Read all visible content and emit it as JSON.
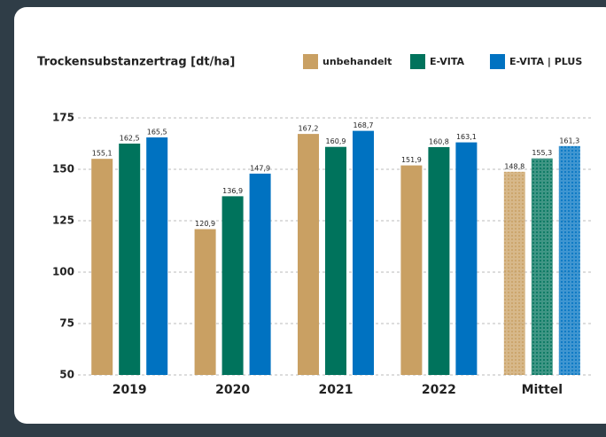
{
  "chart_data": {
    "type": "bar",
    "title": "Trockensubstanzertrag [dt/ha]",
    "categories": [
      "2019",
      "2020",
      "2021",
      "2022",
      "Mittel"
    ],
    "dotted": [
      false,
      false,
      false,
      false,
      true
    ],
    "series": [
      {
        "name": "unbehandelt",
        "color": "#c9a063",
        "values": [
          155.1,
          120.9,
          167.2,
          151.9,
          148.8
        ],
        "value_labels": [
          "155,1",
          "120,9",
          "167,2",
          "151,9",
          "148,8"
        ]
      },
      {
        "name": "E-VITA",
        "color": "#00735c",
        "values": [
          162.5,
          136.9,
          160.9,
          160.8,
          155.3
        ],
        "value_labels": [
          "162,5",
          "136,9",
          "160,9",
          "160,8",
          "155,3"
        ]
      },
      {
        "name": "E-VITA | PLUS",
        "color": "#0072c1",
        "values": [
          165.5,
          147.9,
          168.7,
          163.1,
          161.3
        ],
        "value_labels": [
          "165,5",
          "147,9",
          "168,7",
          "163,1",
          "161,3"
        ]
      }
    ],
    "ylim": [
      50,
      175
    ],
    "yticks": [
      50,
      75,
      100,
      125,
      150,
      175
    ],
    "grid": true
  }
}
